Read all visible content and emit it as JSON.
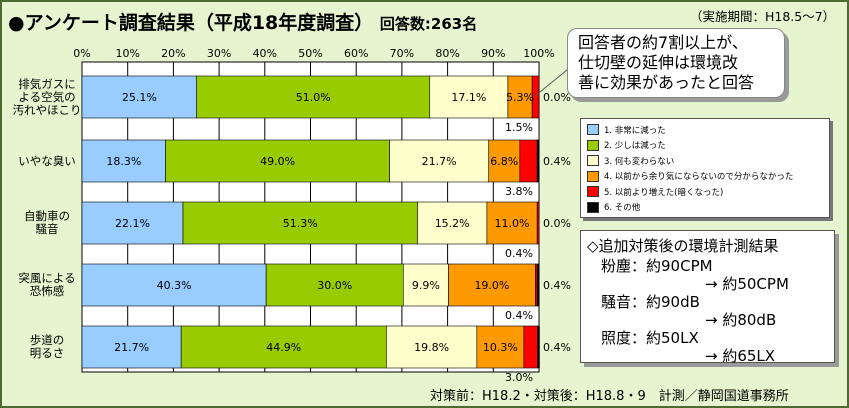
{
  "title": "●アンケート調査結果（平成18年度調査）",
  "respondents": "回答数:263名",
  "period": "（実施期間：H18.5～7）",
  "callout": {
    "lines": [
      "回答者の約7割以上が、",
      "仕切壁の延伸は環境改",
      "善に効果があったと回答"
    ]
  },
  "legend": [
    {
      "label": "1. 非常に減った",
      "color": "#99ccff"
    },
    {
      "label": "2. 少しは減った",
      "color": "#99cc00"
    },
    {
      "label": "3. 何も変わらない",
      "color": "#ffffcc"
    },
    {
      "label": "4. 以前から余り気にならないので分からなかった",
      "color": "#ff9900"
    },
    {
      "label": "5. 以前より増えた(暗くなった)",
      "color": "#ff0000"
    },
    {
      "label": "6. その他",
      "color": "#000000"
    }
  ],
  "env": {
    "header": "◇追加対策後の環境計測結果",
    "rows": [
      {
        "item": "粉塵：",
        "before": "約90CPM",
        "after": "→ 約50CPM"
      },
      {
        "item": "騒音：",
        "before": "約90dB",
        "after": "→ 約80dB"
      },
      {
        "item": "照度：",
        "before": "約50LX",
        "after": "→ 約65LX"
      }
    ]
  },
  "footer": "対策前：H18.2・対策後：H18.8・9　計測／静岡国道事務所",
  "chart_data": {
    "type": "bar",
    "orientation": "horizontal",
    "stacked": true,
    "xlim": [
      0,
      100
    ],
    "ticks": [
      "0%",
      "10%",
      "20%",
      "30%",
      "40%",
      "50%",
      "60%",
      "70%",
      "80%",
      "90%",
      "100%"
    ],
    "categories": [
      {
        "lines": [
          "排気ガスに",
          "よる空気の",
          "汚れやほこり"
        ]
      },
      {
        "lines": [
          "いやな臭い"
        ]
      },
      {
        "lines": [
          "自動車の",
          "騒音"
        ]
      },
      {
        "lines": [
          "突風による",
          "恐怖感"
        ]
      },
      {
        "lines": [
          "歩道の",
          "明るさ"
        ]
      }
    ],
    "series": [
      {
        "name": "1. 非常に減った",
        "values": [
          25.1,
          18.3,
          22.1,
          40.3,
          21.7
        ]
      },
      {
        "name": "2. 少しは減った",
        "values": [
          51.0,
          49.0,
          51.3,
          30.0,
          44.9
        ]
      },
      {
        "name": "3. 何も変わらない",
        "values": [
          17.1,
          21.7,
          15.2,
          9.9,
          19.8
        ]
      },
      {
        "name": "4. 以前から余り気にならないので分からなかった",
        "values": [
          5.3,
          6.8,
          11.0,
          19.0,
          10.3
        ]
      },
      {
        "name": "5. 以前より増えた(暗くなった)",
        "values": [
          1.5,
          3.8,
          0.4,
          0.4,
          3.0
        ]
      },
      {
        "name": "6. その他",
        "values": [
          0.0,
          0.4,
          0.0,
          0.4,
          0.4
        ]
      }
    ],
    "data_labels": [
      [
        "25.1%",
        "51.0%",
        "17.1%",
        "5.3%",
        "1.5%",
        "0.0%"
      ],
      [
        "18.3%",
        "49.0%",
        "21.7%",
        "6.8%",
        "3.8%",
        "0.4%"
      ],
      [
        "22.1%",
        "51.3%",
        "15.2%",
        "11.0%",
        "0.4%",
        "0.0%"
      ],
      [
        "40.3%",
        "30.0%",
        "9.9%",
        "19.0%",
        "0.4%",
        "0.4%"
      ],
      [
        "21.7%",
        "44.9%",
        "19.8%",
        "10.3%",
        "3.0%",
        "0.4%"
      ]
    ],
    "colors": [
      "#99ccff",
      "#99cc00",
      "#ffffcc",
      "#ff9900",
      "#ff0000",
      "#000000"
    ]
  }
}
